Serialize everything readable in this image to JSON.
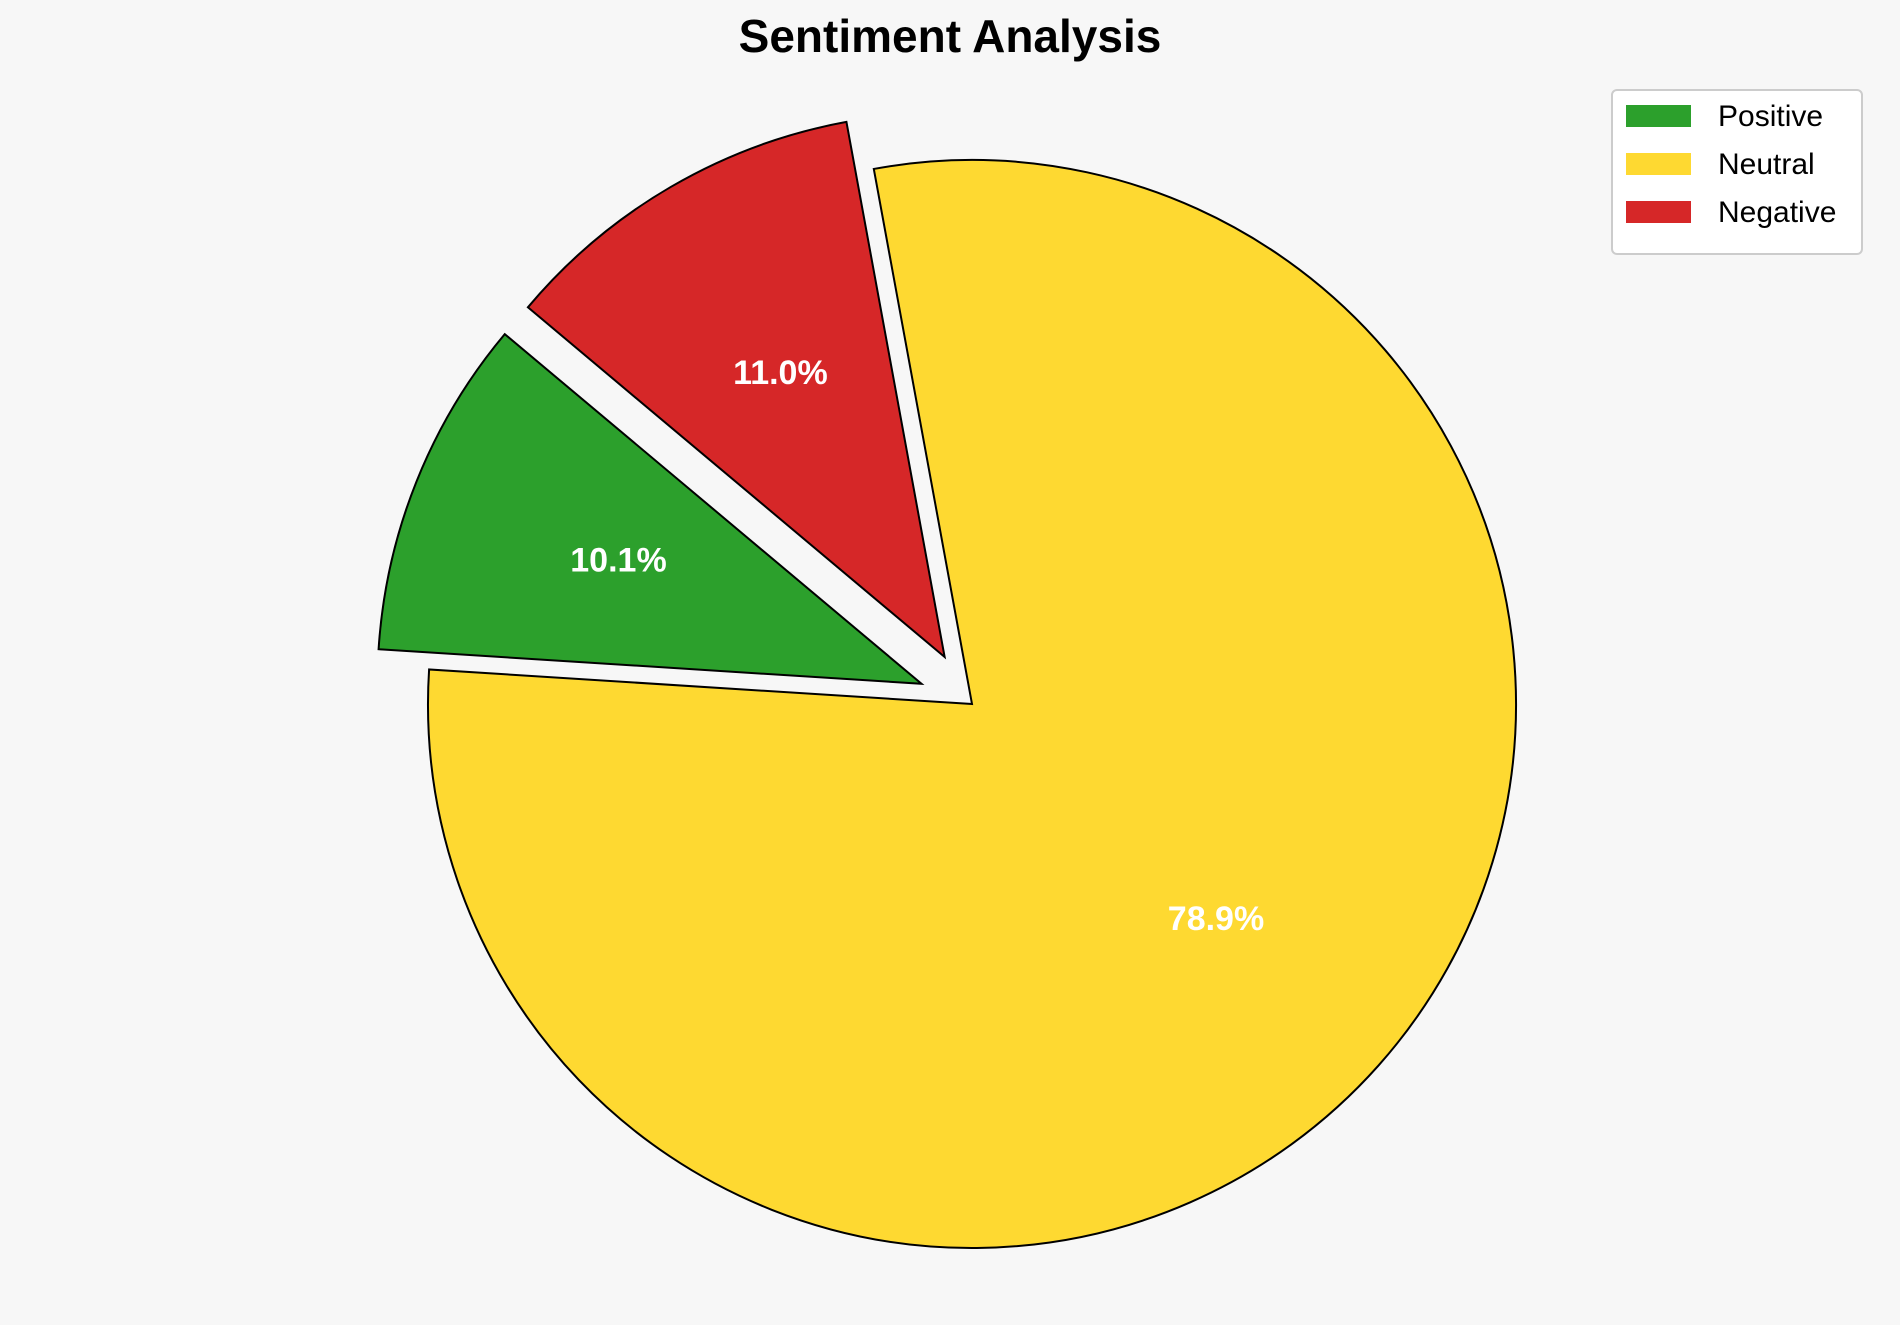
{
  "chart_data": {
    "type": "pie",
    "title": "Sentiment Analysis",
    "categories": [
      "Positive",
      "Neutral",
      "Negative"
    ],
    "values": [
      10.1,
      78.9,
      11.0
    ],
    "value_labels": [
      "10.1%",
      "78.9%",
      "11.0%"
    ],
    "colors": [
      "#2ca02c",
      "#fed931",
      "#d62728"
    ],
    "legend": "upper right"
  }
}
